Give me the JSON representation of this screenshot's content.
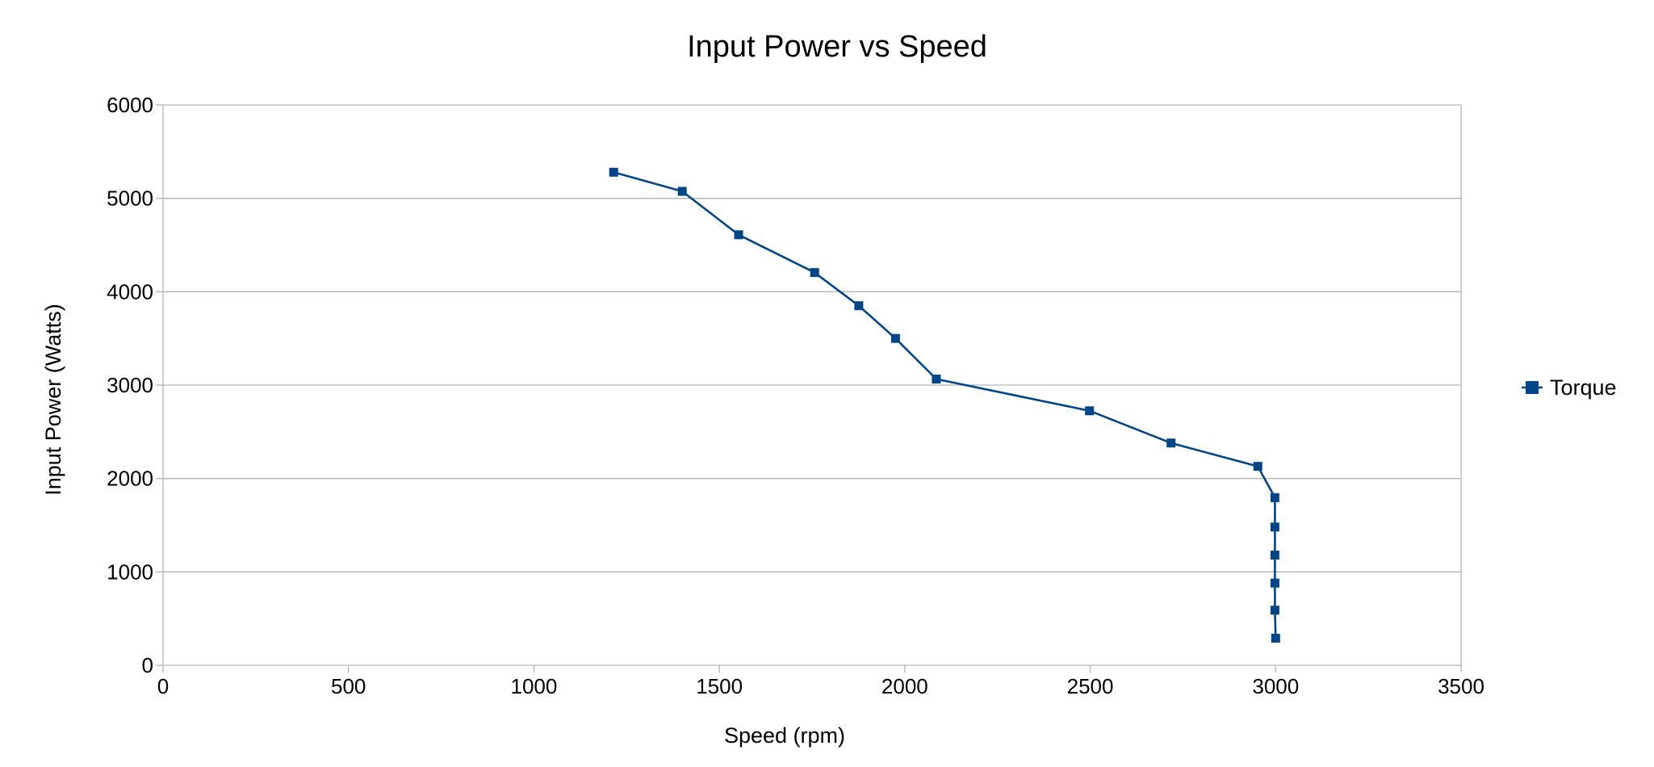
{
  "chart_data": {
    "type": "line",
    "title": "Input Power vs Speed",
    "xlabel": "Speed (rpm)",
    "ylabel": "Input Power (Watts)",
    "xlim": [
      0,
      3500
    ],
    "ylim": [
      0,
      6000
    ],
    "xticks": [
      0,
      500,
      1000,
      1500,
      2000,
      2500,
      3000,
      3500
    ],
    "yticks": [
      0,
      1000,
      2000,
      3000,
      4000,
      5000,
      6000
    ],
    "grid": "horizontal",
    "legend_position": "right",
    "series": [
      {
        "name": "Torque",
        "color": "#004586",
        "marker": "square",
        "points": [
          {
            "x": 1215,
            "y": 5280
          },
          {
            "x": 1400,
            "y": 5075
          },
          {
            "x": 1552,
            "y": 4610
          },
          {
            "x": 1757,
            "y": 4205
          },
          {
            "x": 1876,
            "y": 3850
          },
          {
            "x": 1975,
            "y": 3500
          },
          {
            "x": 2085,
            "y": 3065
          },
          {
            "x": 2498,
            "y": 2725
          },
          {
            "x": 2718,
            "y": 2380
          },
          {
            "x": 2952,
            "y": 2130
          },
          {
            "x": 2998,
            "y": 1795
          },
          {
            "x": 2998,
            "y": 1480
          },
          {
            "x": 2998,
            "y": 1180
          },
          {
            "x": 2998,
            "y": 880
          },
          {
            "x": 2998,
            "y": 590
          },
          {
            "x": 3000,
            "y": 290
          }
        ]
      }
    ]
  }
}
